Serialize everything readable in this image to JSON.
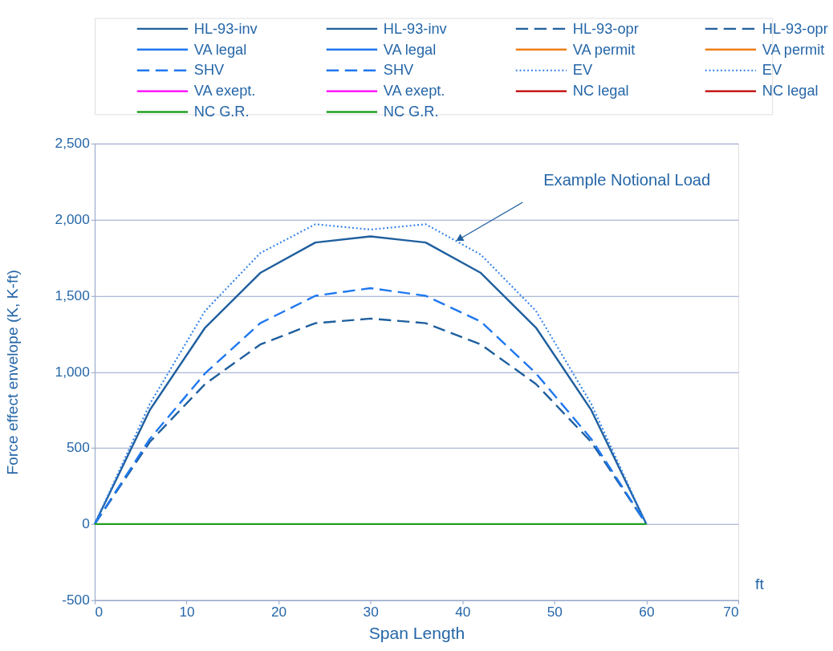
{
  "chart_data": {
    "type": "line",
    "xlabel": "Span Length",
    "ylabel": "Force effect envelope (K, K-ft)",
    "xlim": [
      0,
      70
    ],
    "xticks": [
      0,
      10,
      20,
      30,
      40,
      50,
      60,
      70
    ],
    "ylim": [
      -500,
      2500
    ],
    "yticks": [
      {
        "value": -500,
        "label": "-500"
      },
      0,
      500,
      {
        "value": 1000,
        "label": "1,000"
      },
      {
        "value": 1500,
        "label": "1,500"
      },
      {
        "value": 2000,
        "label": "2,000"
      },
      {
        "value": 2500,
        "label": "2,500"
      }
    ],
    "grid": "y",
    "legend": "top",
    "marker": "none",
    "annotations": [
      "Example Notional Load",
      "ft"
    ],
    "series": [
      {
        "name": "HL-93-inv",
        "color": "#1f5f9e",
        "line_style": "solid",
        "x": [
          0,
          6,
          12,
          18,
          24,
          30,
          36,
          42,
          48,
          54,
          60
        ],
        "values": [
          0,
          750,
          1290,
          1650,
          1850,
          1890,
          1850,
          1650,
          1290,
          750,
          0
        ]
      },
      {
        "name": "HL-93-opr",
        "color": "#1f5f9e",
        "line_style": "dashed",
        "x": [
          0,
          6,
          12,
          18,
          24,
          30,
          36,
          42,
          48,
          54,
          60
        ],
        "values": [
          0,
          540,
          920,
          1180,
          1320,
          1350,
          1320,
          1180,
          920,
          540,
          0
        ]
      },
      {
        "name": "VA legal",
        "color": "#1f78f0",
        "line_style": "solid",
        "values": [
          null
        ]
      },
      {
        "name": "VA permit",
        "color": "#f07f1a",
        "line_style": "solid",
        "values": [
          null
        ]
      },
      {
        "name": "SHV",
        "color": "#1f78f0",
        "line_style": "dashed",
        "x": [
          0,
          6,
          12,
          18,
          24,
          30,
          36,
          42,
          48,
          54,
          60
        ],
        "values": [
          0,
          560,
          990,
          1320,
          1500,
          1550,
          1500,
          1330,
          990,
          560,
          0
        ]
      },
      {
        "name": "EV",
        "color": "#2f80e8",
        "line_style": "dotted",
        "x": [
          0,
          6,
          12,
          18,
          24,
          30,
          36,
          42,
          48,
          54,
          60
        ],
        "values": [
          0,
          790,
          1400,
          1780,
          1970,
          1935,
          1970,
          1770,
          1400,
          790,
          0
        ]
      },
      {
        "name": "VA exept.",
        "color": "#ff00ff",
        "line_style": "solid",
        "values": [
          null
        ]
      },
      {
        "name": "NC legal",
        "color": "#c00000",
        "line_style": "solid",
        "values": [
          null
        ]
      },
      {
        "name": "NC G.R.",
        "color": "#22a022",
        "line_style": "solid",
        "x": [
          0,
          60
        ],
        "values": [
          0,
          0
        ]
      }
    ]
  }
}
